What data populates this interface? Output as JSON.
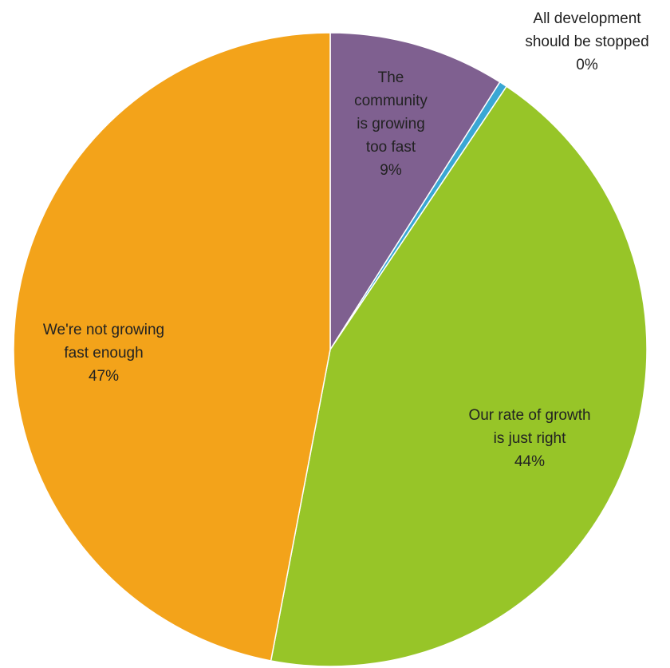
{
  "chart_data": {
    "type": "pie",
    "start_angle_deg": 0,
    "direction": "clockwise",
    "slices": [
      {
        "label_lines": [
          "The",
          "community",
          "is growing",
          "too fast"
        ],
        "value": 9,
        "percent_label": "9%",
        "color": "#7F6090"
      },
      {
        "label_lines": [
          "All development",
          "should be stopped"
        ],
        "value": 0.4,
        "percent_label": "0%",
        "color": "#3AA7D4"
      },
      {
        "label_lines": [
          "Our rate of growth",
          "is just right"
        ],
        "value": 43.6,
        "percent_label": "44%",
        "color": "#97C528"
      },
      {
        "label_lines": [
          "We're not growing",
          "fast enough"
        ],
        "value": 47,
        "percent_label": "47%",
        "color": "#F3A31A"
      }
    ]
  }
}
